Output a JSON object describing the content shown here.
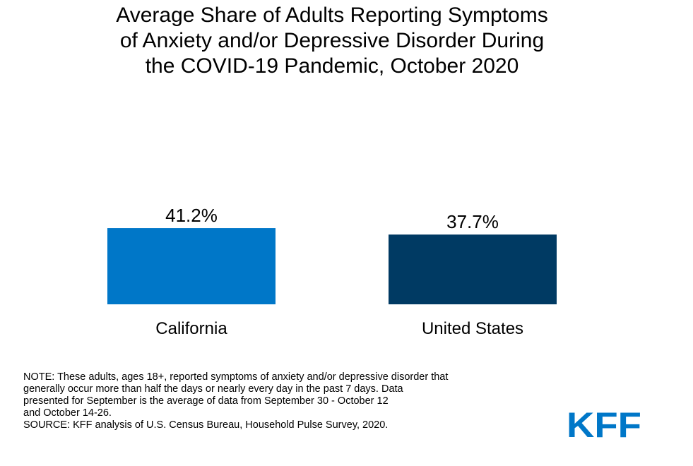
{
  "chart_data": {
    "type": "bar",
    "title_lines": [
      "Average Share of Adults Reporting Symptoms",
      "of Anxiety and/or Depressive Disorder During",
      "the COVID-19 Pandemic, October 2020"
    ],
    "categories": [
      "California",
      "United States"
    ],
    "values": [
      41.2,
      37.7
    ],
    "data_labels": [
      "41.2%",
      "37.7%"
    ],
    "bar_colors": [
      "#0077C8",
      "#003A63"
    ],
    "ylim": [
      0,
      100
    ],
    "grid": false,
    "legend": "none"
  },
  "footnote": {
    "lines": [
      "NOTE: These adults, ages 18+, reported symptoms of anxiety and/or depressive disorder that",
      "generally occur  more than half the days or nearly every day in the past 7 days. Data",
      "presented for September is the average of data from September 30 - October 12",
      "and October 14-26.",
      "SOURCE: KFF analysis of U.S. Census Bureau, Household Pulse Survey, 2020."
    ]
  },
  "logo": {
    "text": "KFF",
    "color": "#0077C8"
  }
}
